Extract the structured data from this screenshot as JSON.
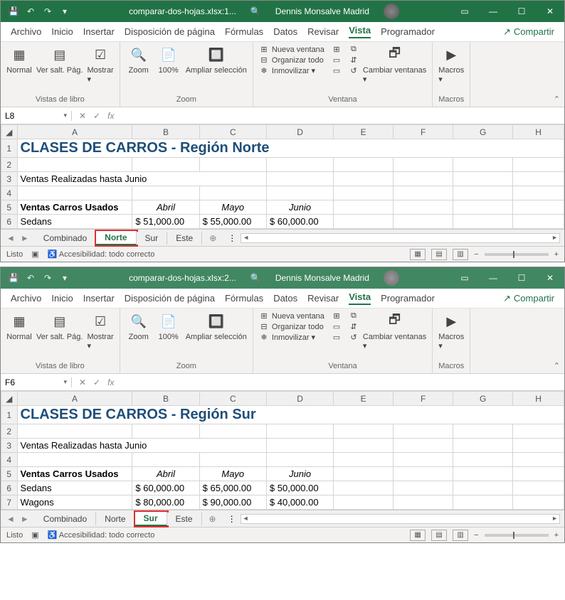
{
  "windows": [
    {
      "titlebar": {
        "filename": "comparar-dos-hojas.xlsx:1...",
        "user": "Dennis Monsalve Madrid"
      },
      "nameBox": "L8",
      "menu": [
        "Archivo",
        "Inicio",
        "Insertar",
        "Disposición de página",
        "Fórmulas",
        "Datos",
        "Revisar",
        "Vista",
        "Programador"
      ],
      "menuActive": "Vista",
      "share": "Compartir",
      "ribbon": {
        "g1": {
          "label": "Vistas de libro",
          "btns": [
            "Normal",
            "Ver salt. Pág.",
            "Mostrar"
          ]
        },
        "g2": {
          "label": "Zoom",
          "btns": [
            "Zoom",
            "100%",
            "Ampliar selección"
          ]
        },
        "g3": {
          "label": "Ventana",
          "list": [
            "Nueva ventana",
            "Organizar todo",
            "Inmovilizar"
          ],
          "btns": [
            "Cambiar ventanas"
          ]
        },
        "g4": {
          "label": "Macros",
          "btns": [
            "Macros"
          ]
        }
      },
      "columns": [
        "A",
        "B",
        "C",
        "D",
        "E",
        "F",
        "G",
        "H"
      ],
      "rows": [
        {
          "n": "1",
          "cells": [
            {
              "t": "CLASES DE CARROS - Región Norte",
              "cls": "big-title",
              "span": 8
            }
          ]
        },
        {
          "n": "2",
          "cells": [
            {
              "t": ""
            }
          ]
        },
        {
          "n": "3",
          "cells": [
            {
              "t": "Ventas Realizadas hasta Junio",
              "span": 3
            }
          ]
        },
        {
          "n": "4",
          "cells": [
            {
              "t": ""
            }
          ]
        },
        {
          "n": "5",
          "cells": [
            {
              "t": "Ventas Carros Usados",
              "cls": "bold"
            },
            {
              "t": "Abril",
              "cls": "italic"
            },
            {
              "t": "Mayo",
              "cls": "italic"
            },
            {
              "t": "Junio",
              "cls": "italic"
            }
          ]
        },
        {
          "n": "6",
          "cells": [
            {
              "t": "Sedans"
            },
            {
              "t": "$   51,000.00",
              "cls": "money"
            },
            {
              "t": "$   55,000.00",
              "cls": "money"
            },
            {
              "t": "$   60,000.00",
              "cls": "money"
            }
          ]
        }
      ],
      "tabs": [
        "Combinado",
        "Norte",
        "Sur",
        "Este"
      ],
      "activeTab": "Norte",
      "highlightTab": "Norte",
      "status": {
        "left": "Listo",
        "access": "Accesibilidad: todo correcto"
      }
    },
    {
      "titlebar": {
        "filename": "comparar-dos-hojas.xlsx:2...",
        "user": "Dennis Monsalve Madrid"
      },
      "nameBox": "F6",
      "menu": [
        "Archivo",
        "Inicio",
        "Insertar",
        "Disposición de página",
        "Fórmulas",
        "Datos",
        "Revisar",
        "Vista",
        "Programador"
      ],
      "menuActive": "Vista",
      "share": "Compartir",
      "ribbon": {
        "g1": {
          "label": "Vistas de libro",
          "btns": [
            "Normal",
            "Ver salt. Pág.",
            "Mostrar"
          ]
        },
        "g2": {
          "label": "Zoom",
          "btns": [
            "Zoom",
            "100%",
            "Ampliar selección"
          ]
        },
        "g3": {
          "label": "Ventana",
          "list": [
            "Nueva ventana",
            "Organizar todo",
            "Inmovilizar"
          ],
          "btns": [
            "Cambiar ventanas"
          ]
        },
        "g4": {
          "label": "Macros",
          "btns": [
            "Macros"
          ]
        }
      },
      "columns": [
        "A",
        "B",
        "C",
        "D",
        "E",
        "F",
        "G",
        "H"
      ],
      "rows": [
        {
          "n": "1",
          "cells": [
            {
              "t": "CLASES DE CARROS - Región Sur",
              "cls": "big-title",
              "span": 8
            }
          ]
        },
        {
          "n": "2",
          "cells": [
            {
              "t": ""
            }
          ]
        },
        {
          "n": "3",
          "cells": [
            {
              "t": "Ventas Realizadas hasta Junio",
              "span": 3
            }
          ]
        },
        {
          "n": "4",
          "cells": [
            {
              "t": ""
            }
          ]
        },
        {
          "n": "5",
          "cells": [
            {
              "t": "Ventas Carros Usados",
              "cls": "bold"
            },
            {
              "t": "Abril",
              "cls": "italic"
            },
            {
              "t": "Mayo",
              "cls": "italic"
            },
            {
              "t": "Junio",
              "cls": "italic"
            }
          ]
        },
        {
          "n": "6",
          "cells": [
            {
              "t": "Sedans"
            },
            {
              "t": "$   60,000.00",
              "cls": "money"
            },
            {
              "t": "$   65,000.00",
              "cls": "money"
            },
            {
              "t": "$   50,000.00",
              "cls": "money"
            }
          ]
        },
        {
          "n": "7",
          "cells": [
            {
              "t": "Wagons"
            },
            {
              "t": "$   80,000.00",
              "cls": "money"
            },
            {
              "t": "$   90,000.00",
              "cls": "money"
            },
            {
              "t": "$   40,000.00",
              "cls": "money"
            }
          ]
        }
      ],
      "tabs": [
        "Combinado",
        "Norte",
        "Sur",
        "Este"
      ],
      "activeTab": "Sur",
      "highlightTab": "Sur",
      "status": {
        "left": "Listo",
        "access": "Accesibilidad: todo correcto"
      }
    }
  ],
  "colors": {
    "brand": "#217346",
    "titleText": "#1f4e79",
    "highlight": "#e03030"
  }
}
